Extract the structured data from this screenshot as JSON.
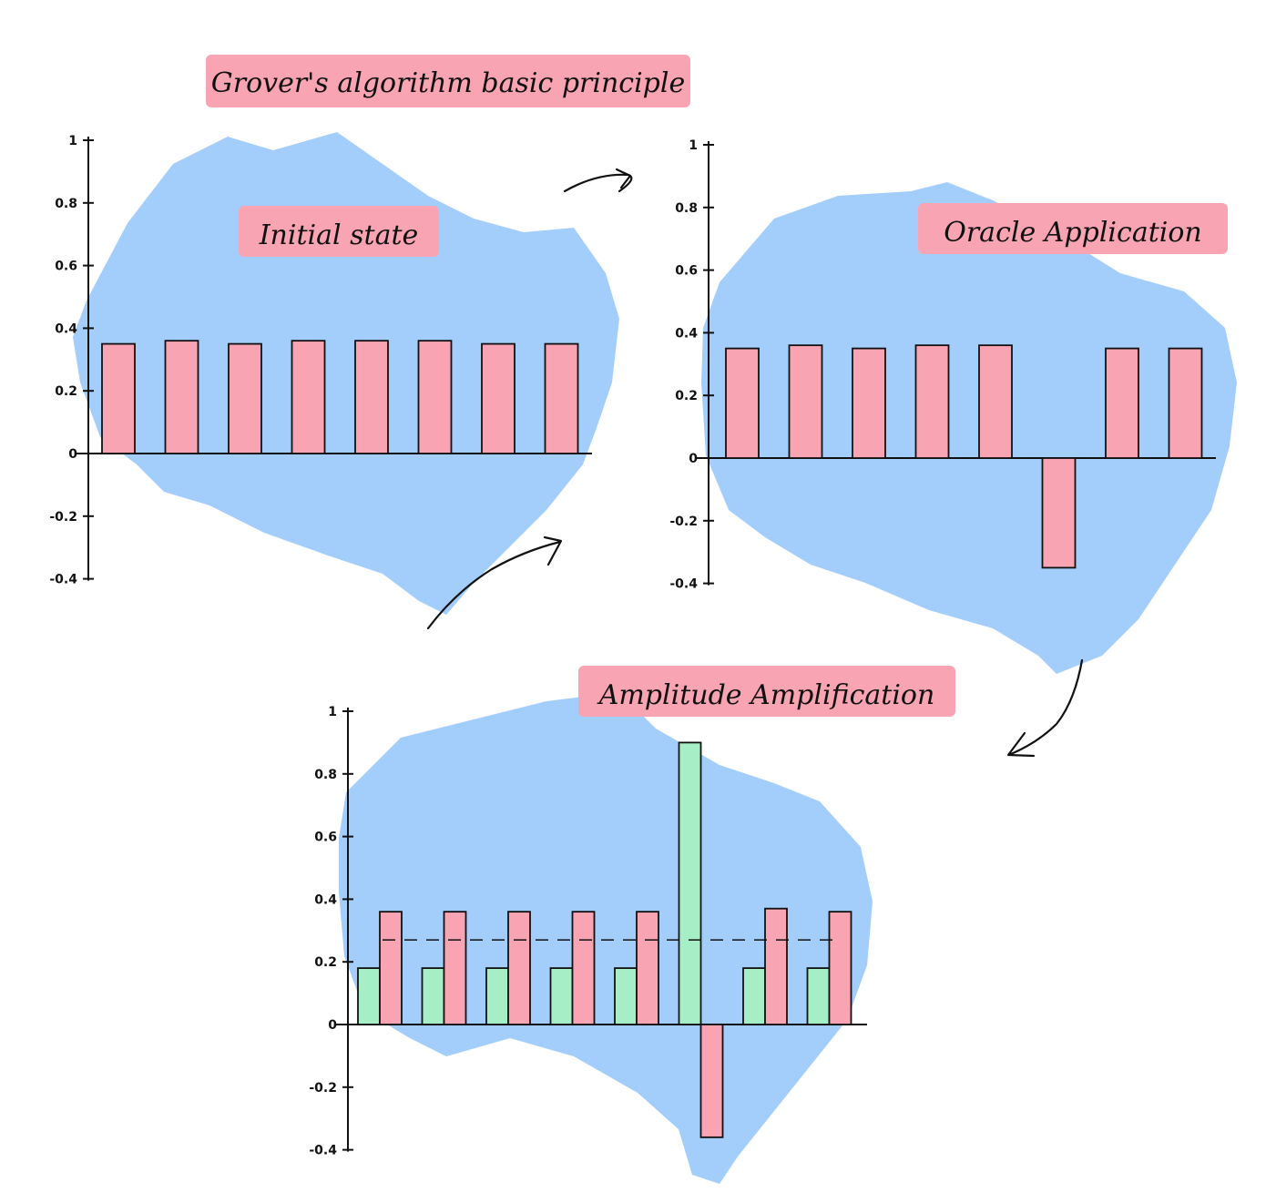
{
  "page_title": "Grover's algorithm basic principle",
  "colors": {
    "blob": "#a3cefb",
    "highlight": "#f9a4b3",
    "bar_pink": "#f9a4b3",
    "bar_green": "#a6eec5",
    "ink": "#111111",
    "background": "#ffffff"
  },
  "chart_data": [
    {
      "type": "bar",
      "title": "Initial state",
      "y_ticks": [
        "1",
        "0.8",
        "0.6",
        "0.4",
        "0.2",
        "0",
        "-0.2",
        "-0.4"
      ],
      "ylim": [
        -0.4,
        1
      ],
      "categories": [
        "",
        "",
        "",
        "",
        "",
        "",
        "",
        ""
      ],
      "series": [
        {
          "values": [
            0.35,
            0.36,
            0.35,
            0.36,
            0.36,
            0.36,
            0.35,
            0.35
          ],
          "color": "#f9a4b3"
        }
      ],
      "mean_line": null
    },
    {
      "type": "bar",
      "title": "Oracle Application",
      "y_ticks": [
        "1",
        "0.8",
        "0.6",
        "0.4",
        "0.2",
        "0",
        "-0.2",
        "-0.4"
      ],
      "ylim": [
        -0.4,
        1
      ],
      "categories": [
        "",
        "",
        "",
        "",
        "",
        "",
        "",
        ""
      ],
      "series": [
        {
          "values": [
            0.35,
            0.36,
            0.35,
            0.36,
            0.36,
            -0.35,
            0.35,
            0.35
          ],
          "color": "#f9a4b3"
        }
      ],
      "mean_line": null
    },
    {
      "type": "bar",
      "title": "Amplitude Amplification",
      "y_ticks": [
        "1",
        "0.8",
        "0.6",
        "0.4",
        "0.2",
        "0",
        "-0.2",
        "-0.4"
      ],
      "ylim": [
        -0.4,
        1
      ],
      "categories": [
        "",
        "",
        "",
        "",
        "",
        "",
        "",
        ""
      ],
      "series": [
        {
          "values": [
            0.18,
            0.18,
            0.18,
            0.18,
            0.18,
            0.9,
            0.18,
            0.18
          ],
          "color": "#a6eec5"
        },
        {
          "values": [
            0.36,
            0.36,
            0.36,
            0.36,
            0.36,
            -0.36,
            0.37,
            0.36
          ],
          "color": "#f9a4b3"
        }
      ],
      "mean_line": 0.27
    }
  ]
}
